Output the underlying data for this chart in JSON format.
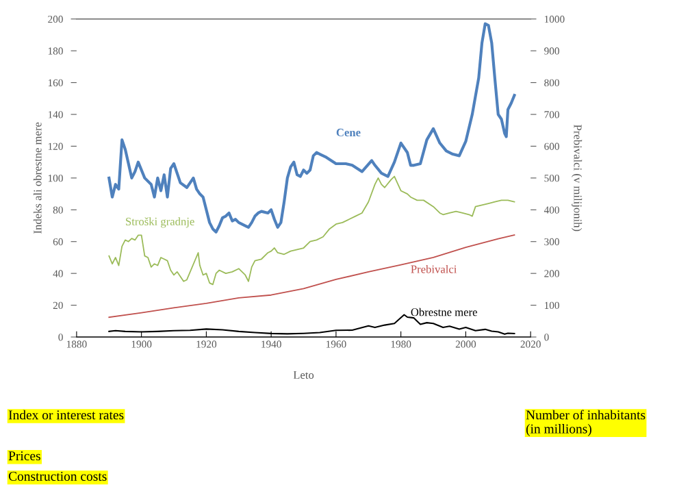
{
  "chart_data": {
    "type": "line",
    "xlabel": "Leto",
    "ylabel": "Indeks ali obrestne mere",
    "y2label": "Prebivalci (v milijonih)",
    "xlim": [
      1880,
      2020
    ],
    "xticks": [
      1880,
      1900,
      1920,
      1940,
      1960,
      1980,
      2000,
      2020
    ],
    "ylim": [
      0,
      200
    ],
    "yticks": [
      0,
      20,
      40,
      60,
      80,
      100,
      120,
      140,
      160,
      180,
      200
    ],
    "y2lim": [
      0,
      1000
    ],
    "y2ticks": [
      0,
      100,
      200,
      300,
      400,
      500,
      600,
      700,
      800,
      900,
      1000
    ],
    "grid": false,
    "legend": false,
    "marker": "none",
    "line_style": "solid",
    "series": [
      {
        "name": "Cene",
        "color": "#4f81bd",
        "x": [
          1890,
          1891,
          1892,
          1893,
          1894,
          1895,
          1897,
          1898,
          1899,
          1901,
          1903,
          1904,
          1905,
          1906,
          1907,
          1908,
          1909,
          1910,
          1912,
          1914,
          1916,
          1917,
          1918,
          1919,
          1920,
          1921,
          1922,
          1923,
          1924,
          1925,
          1926,
          1927,
          1928,
          1929,
          1930,
          1932,
          1933,
          1934,
          1935,
          1936,
          1937,
          1939,
          1940,
          1941,
          1942,
          1943,
          1944,
          1945,
          1946,
          1947,
          1948,
          1949,
          1950,
          1951,
          1952,
          1953,
          1954,
          1955,
          1957,
          1960,
          1963,
          1965,
          1968,
          1971,
          1972,
          1974,
          1976,
          1978,
          1980,
          1982,
          1983,
          1984,
          1986,
          1988,
          1990,
          1992,
          1994,
          1996,
          1998,
          2000,
          2002,
          2004,
          2005,
          2006,
          2007,
          2008,
          2009,
          2010,
          2011,
          2012,
          2012.5,
          2013,
          2014,
          2015
        ],
        "values": [
          100,
          88,
          96,
          93,
          124,
          118,
          100,
          104,
          110,
          100,
          96,
          88,
          100,
          92,
          102,
          88,
          106,
          109,
          97,
          94,
          100,
          93,
          90,
          88,
          80,
          72,
          68,
          66,
          70,
          75,
          76,
          78,
          73,
          74,
          72,
          70,
          69,
          72,
          76,
          78,
          79,
          78,
          80,
          74,
          69,
          72,
          85,
          100,
          107,
          110,
          102,
          101,
          105,
          103,
          105,
          114,
          116,
          115,
          113,
          109,
          109,
          108,
          104,
          111,
          108,
          103,
          101,
          110,
          122,
          116,
          108,
          108,
          109,
          124,
          131,
          122,
          117,
          115,
          114,
          123,
          140,
          163,
          185,
          197,
          196,
          185,
          162,
          140,
          137,
          128,
          126,
          143,
          147,
          152
        ]
      },
      {
        "name": "Stroški gradnje",
        "color": "#9bbb59",
        "x": [
          1890,
          1891,
          1892,
          1893,
          1894,
          1895,
          1896,
          1897,
          1898,
          1899,
          1900,
          1901,
          1902,
          1903,
          1904,
          1905,
          1906,
          1907,
          1908,
          1909,
          1910,
          1911,
          1912,
          1913,
          1914,
          1917.5,
          1918,
          1919,
          1920,
          1921,
          1922,
          1923,
          1924,
          1926,
          1928,
          1930,
          1932,
          1933,
          1934,
          1935,
          1937,
          1939,
          1940,
          1941,
          1942,
          1944,
          1946,
          1948,
          1950,
          1952,
          1954,
          1956,
          1958,
          1960,
          1962,
          1964,
          1966,
          1968,
          1970,
          1972,
          1973,
          1974,
          1975,
          1977,
          1978,
          1980,
          1982,
          1983,
          1985,
          1987,
          1990,
          1992,
          1993,
          1995,
          1997,
          1999,
          2001,
          2002,
          2003,
          2005,
          2007,
          2009,
          2011,
          2013,
          2015
        ],
        "values": [
          51,
          46,
          50,
          45,
          57,
          61,
          60,
          62,
          61,
          64,
          64,
          51,
          50,
          44,
          46,
          45,
          50,
          49,
          48,
          42,
          39,
          41,
          38,
          35,
          36,
          53,
          45,
          39,
          40,
          34,
          33,
          40,
          42,
          40,
          41,
          43,
          39,
          35,
          44,
          48,
          49,
          53,
          54,
          56,
          53,
          52,
          54,
          55,
          56,
          60,
          61,
          63,
          68,
          71,
          72,
          74,
          76,
          78,
          85,
          96,
          100,
          96,
          94,
          99,
          101,
          92,
          90,
          88,
          86,
          86,
          82,
          78,
          77,
          78,
          79,
          78,
          77,
          76,
          82,
          83,
          84,
          85,
          86,
          86,
          85
        ]
      },
      {
        "name": "Prebivalci",
        "color": "#c0504d",
        "axis": "y2",
        "x": [
          1890,
          1900,
          1910,
          1920,
          1930,
          1940,
          1950,
          1960,
          1970,
          1980,
          1990,
          2000,
          2010,
          2015
        ],
        "values": [
          62,
          76,
          92,
          106,
          123,
          132,
          152,
          181,
          205,
          227,
          250,
          282,
          309,
          321
        ]
      },
      {
        "name": "Obrestne mere",
        "color": "#000000",
        "x": [
          1890,
          1892,
          1895,
          1900,
          1905,
          1910,
          1915,
          1920,
          1925,
          1930,
          1935,
          1940,
          1945,
          1950,
          1955,
          1960,
          1965,
          1970,
          1972,
          1975,
          1978,
          1981,
          1982,
          1984,
          1986,
          1988,
          1990,
          1993,
          1995,
          1998,
          2000,
          2003,
          2006,
          2008,
          2010,
          2012,
          2013,
          2015
        ],
        "values": [
          3.5,
          4,
          3.5,
          3.2,
          3.5,
          4,
          4.2,
          5,
          4.5,
          3.5,
          2.8,
          2.2,
          2,
          2.3,
          2.8,
          4.2,
          4.3,
          7,
          6,
          7.5,
          8.5,
          14,
          12.5,
          12,
          8,
          9,
          8.5,
          6,
          6.8,
          5,
          6,
          4,
          4.8,
          3.7,
          3.2,
          1.8,
          2.4,
          2.2
        ]
      }
    ],
    "annotations": [
      "Index or interest rates",
      "Number of inhabitants\n(in millions)",
      "Prices",
      "Construction costs"
    ]
  }
}
